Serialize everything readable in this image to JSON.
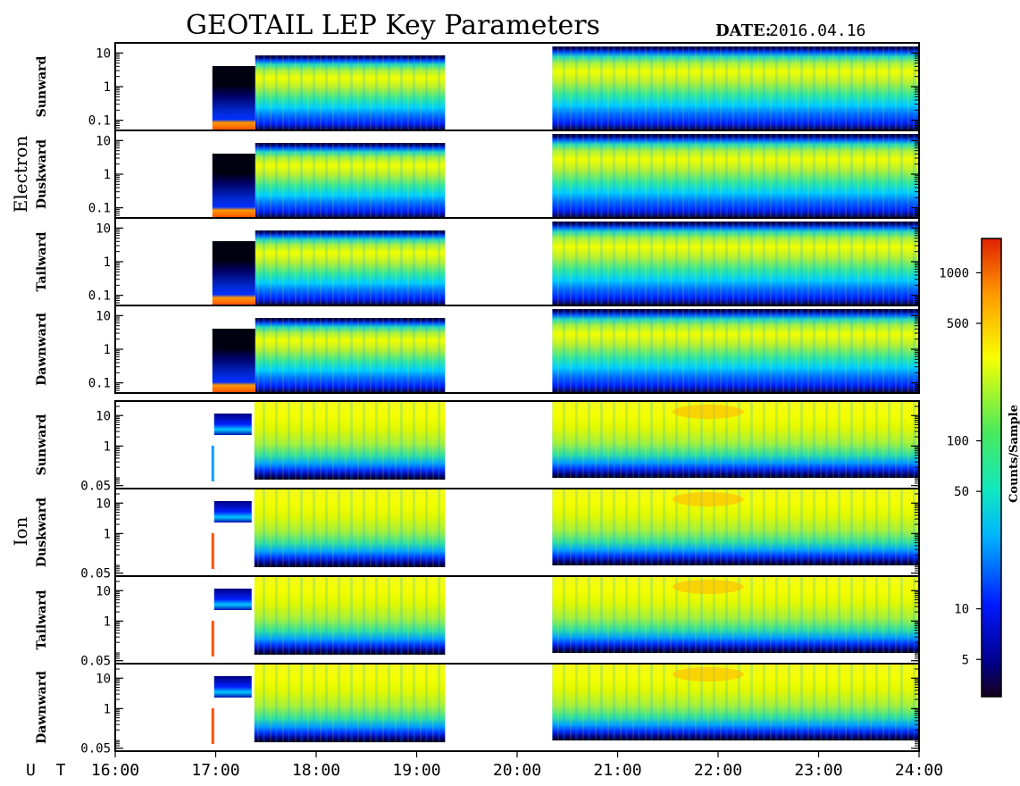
{
  "title": "GEOTAIL LEP Key Parameters",
  "date_label": "DATE:",
  "date_value": "2016.04.16",
  "colorbar": {
    "label": "Counts/Sample",
    "ticks": [
      {
        "value": 1000,
        "label": "1000"
      },
      {
        "value": 500,
        "label": "500"
      },
      {
        "value": 100,
        "label": "100"
      },
      {
        "value": 50,
        "label": "50"
      },
      {
        "value": 10,
        "label": "10"
      },
      {
        "value": 5,
        "label": "5"
      }
    ],
    "range": [
      3,
      1600
    ],
    "scale": "log"
  },
  "chart_data": {
    "type": "heatmap",
    "x_label": "U T",
    "x_ticks": [
      "16:00",
      "17:00",
      "18:00",
      "19:00",
      "20:00",
      "21:00",
      "22:00",
      "23:00",
      "24:00"
    ],
    "x_range_hours": [
      16,
      24
    ],
    "data_coverage_ut": [
      {
        "start": "16:58",
        "end": "19:17"
      },
      {
        "start": "20:21",
        "end": "24:00"
      }
    ],
    "z_scale": "log",
    "groups": [
      {
        "name": "Electron",
        "y_ticks": [
          {
            "value": 10,
            "label": "10"
          },
          {
            "value": 1,
            "label": "1"
          },
          {
            "value": 0.1,
            "label": "0.1"
          }
        ],
        "y_range": [
          0.05,
          20
        ],
        "panels": [
          {
            "name": "Sunward"
          },
          {
            "name": "Duskward"
          },
          {
            "name": "Tailward"
          },
          {
            "name": "Dawnward"
          }
        ]
      },
      {
        "name": "Ion",
        "y_ticks": [
          {
            "value": 10,
            "label": "10"
          },
          {
            "value": 1,
            "label": "1"
          },
          {
            "value": 0.05,
            "label": "0.05"
          }
        ],
        "y_range": [
          0.04,
          30
        ],
        "panels": [
          {
            "name": "Sunward"
          },
          {
            "name": "Duskward"
          },
          {
            "name": "Tailward"
          },
          {
            "name": "Dawnward"
          }
        ]
      }
    ]
  }
}
